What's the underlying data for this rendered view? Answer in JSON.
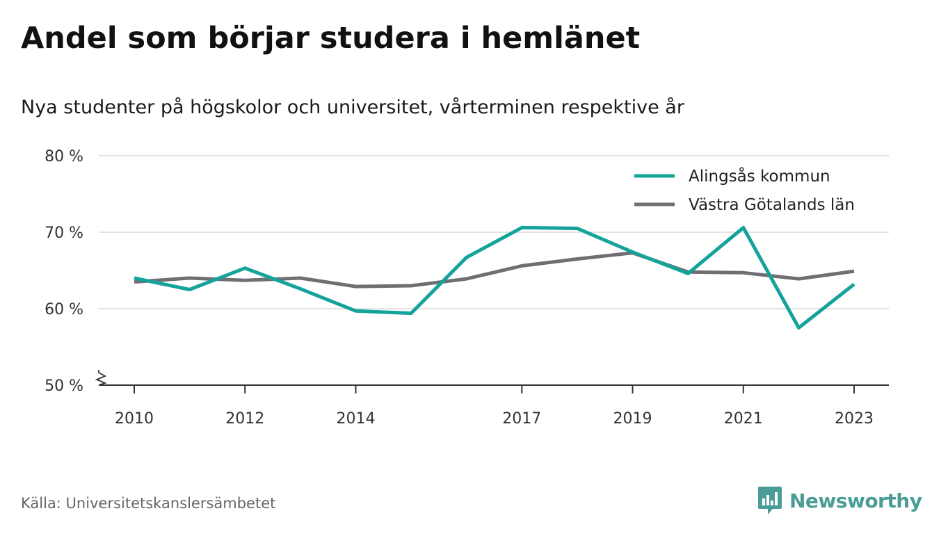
{
  "title": "Andel som börjar studera i hemlänet",
  "subtitle": "Nya studenter på högskolor och universitet, vårterminen respektive år",
  "source": "Källa: Universitetskanslersämbetet",
  "brand": {
    "name": "Newsworthy",
    "icon": "newsworthy-logo-icon",
    "color": "#4a9d97"
  },
  "chart_data": {
    "type": "line",
    "title": "Andel som börjar studera i hemlänet",
    "subtitle": "Nya studenter på högskolor och universitet, vårterminen respektive år",
    "xlabel": "",
    "ylabel": "",
    "x": [
      2010,
      2011,
      2012,
      2013,
      2014,
      2015,
      2016,
      2017,
      2018,
      2019,
      2020,
      2021,
      2022,
      2023
    ],
    "x_tick_labels": [
      "2010",
      "2012",
      "2014",
      "2017",
      "2019",
      "2021",
      "2023"
    ],
    "y_tick_labels": [
      "50 %",
      "60 %",
      "70 %",
      "80 %"
    ],
    "y_ticks": [
      50,
      60,
      70,
      80
    ],
    "ylim": [
      50,
      80
    ],
    "y_axis_break": true,
    "grid": true,
    "legend_position": "top-right",
    "series": [
      {
        "name": "Alingsås kommun",
        "color": "#13a39a",
        "values": [
          64.0,
          62.5,
          65.3,
          62.6,
          59.7,
          59.4,
          66.7,
          70.6,
          70.5,
          67.4,
          64.6,
          70.6,
          57.5,
          63.2
        ]
      },
      {
        "name": "Västra Götalands län",
        "color": "#6f6e73",
        "values": [
          63.5,
          64.0,
          63.7,
          64.0,
          62.9,
          63.0,
          63.9,
          65.6,
          66.5,
          67.3,
          64.8,
          64.7,
          63.9,
          64.9
        ]
      }
    ]
  }
}
